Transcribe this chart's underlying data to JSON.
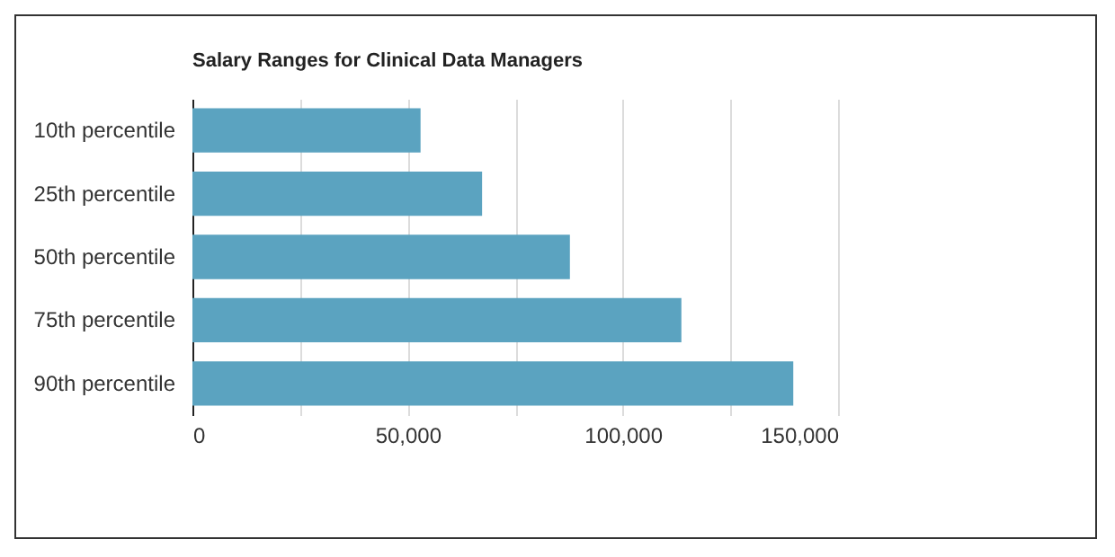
{
  "chart_data": {
    "type": "bar",
    "orientation": "horizontal",
    "title": "Salary Ranges for Clinical Data Managers",
    "categories": [
      "10th percentile",
      "25th percentile",
      "50th percentile",
      "75th percentile",
      "90th percentile"
    ],
    "values": [
      53000,
      67300,
      87700,
      113600,
      139600
    ],
    "color": "#5ba3c0",
    "xlim": [
      0,
      150000
    ],
    "xticks": [
      0,
      {
        "value": 25000,
        "label": null
      },
      {
        "value": 50000,
        "label": "50,000"
      },
      {
        "value": 75000,
        "label": null
      },
      {
        "value": 100000,
        "label": "100,000"
      },
      {
        "value": 125000,
        "label": null
      },
      {
        "value": 150000,
        "label": "150,000"
      }
    ],
    "grid": true
  }
}
